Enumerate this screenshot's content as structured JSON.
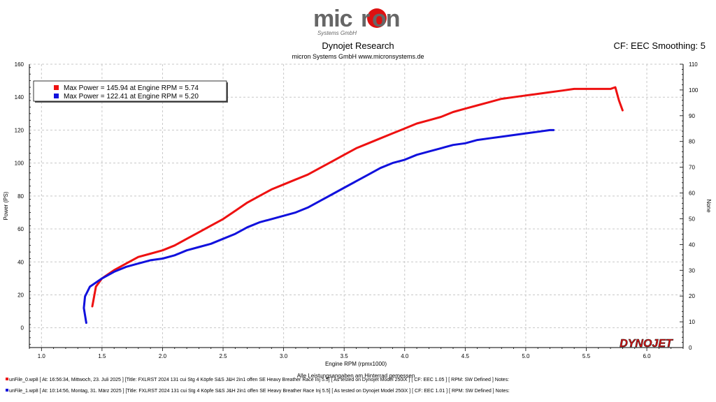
{
  "logo": {
    "brand": "micron",
    "tagline": "Systems GmbH"
  },
  "header": {
    "title": "Dynojet Research",
    "subtitle": "micron Systems GmbH  www.micronsystems.de",
    "cf_label": "CF: EEC Smoothing: 5"
  },
  "footer": {
    "run0": "unFile_0.wp8 [ At:  16:56:34, Mittwoch, 23. Juli  2025 ] [Title:  FXLRST  2024  131  cui  Stg  4  Köpfe  S&S  J&H  2in1  offen  SE  Heavy  Breather  Race  Inj  5.5]  [ As tested on Dynojet  Model 250iX ] [ CF: EEC 1.05 ] [ RPM: SW  Defined ] Notes:",
    "run1": "unFile_1.wp8 [ At:  10:14:56, Montag, 31. März  2025 ] [Title:  FXLRST  2024  131  cui  Stg  4  Köpfe  S&S  J&H  2in1  offen  SE  Heavy  Breather  Race  Inj  5.5]  [ As tested on Dynojet  Model 250iX ] [ CF: EEC 1.01 ] [ RPM: SW  Defined ] Notes:"
  },
  "chart_data": {
    "type": "line",
    "xlabel": "Engine RPM (rpmx1000)",
    "xlabel2": "Alle Leistungsangaben am Hinterrad gemessen",
    "ylabel": "Power (PS)",
    "y2label": "None",
    "xlim": [
      0.9,
      6.3
    ],
    "ylim": [
      -12,
      160
    ],
    "y2lim": [
      0,
      110
    ],
    "xticks": [
      "1.0",
      "1.5",
      "2.0",
      "2.5",
      "3.0",
      "3.5",
      "4.0",
      "4.5",
      "5.0",
      "5.5",
      "6.0"
    ],
    "yticks": [
      "0",
      "20",
      "40",
      "60",
      "80",
      "100",
      "120",
      "140",
      "160"
    ],
    "y2ticks": [
      "0",
      "10",
      "20",
      "30",
      "40",
      "50",
      "60",
      "70",
      "80",
      "90",
      "100",
      "110"
    ],
    "grid": true,
    "legend_position": "top-left",
    "watermark": "DYNOJET",
    "series": [
      {
        "name": "Max Power = 145.94 at Engine RPM = 5.74",
        "color": "#ee1111",
        "x": [
          1.42,
          1.45,
          1.5,
          1.6,
          1.7,
          1.8,
          1.9,
          2.0,
          2.1,
          2.2,
          2.3,
          2.4,
          2.5,
          2.6,
          2.7,
          2.8,
          2.9,
          3.0,
          3.1,
          3.2,
          3.3,
          3.4,
          3.5,
          3.6,
          3.7,
          3.8,
          3.9,
          4.0,
          4.1,
          4.2,
          4.3,
          4.4,
          4.5,
          4.6,
          4.7,
          4.8,
          4.9,
          5.0,
          5.1,
          5.2,
          5.3,
          5.4,
          5.5,
          5.6,
          5.7,
          5.74,
          5.77,
          5.8
        ],
        "y": [
          13,
          25,
          30,
          35,
          39,
          43,
          45,
          47,
          50,
          54,
          58,
          62,
          66,
          71,
          76,
          80,
          84,
          87,
          90,
          93,
          97,
          101,
          105,
          109,
          112,
          115,
          118,
          121,
          124,
          126,
          128,
          131,
          133,
          135,
          137,
          139,
          140,
          141,
          142,
          143,
          144,
          145,
          145,
          145,
          145,
          146,
          138,
          132
        ]
      },
      {
        "name": "Max Power = 122.41 at Engine RPM = 5.20",
        "color": "#1111dd",
        "x": [
          1.37,
          1.35,
          1.36,
          1.4,
          1.5,
          1.6,
          1.7,
          1.8,
          1.9,
          2.0,
          2.1,
          2.2,
          2.3,
          2.4,
          2.5,
          2.6,
          2.7,
          2.8,
          2.9,
          3.0,
          3.1,
          3.2,
          3.3,
          3.4,
          3.5,
          3.6,
          3.7,
          3.8,
          3.9,
          4.0,
          4.1,
          4.2,
          4.3,
          4.4,
          4.5,
          4.6,
          4.7,
          4.8,
          4.9,
          5.0,
          5.1,
          5.2,
          5.23
        ],
        "y": [
          3,
          12,
          19,
          25,
          30,
          34,
          37,
          39,
          41,
          42,
          44,
          47,
          49,
          51,
          54,
          57,
          61,
          64,
          66,
          68,
          70,
          73,
          77,
          81,
          85,
          89,
          93,
          97,
          100,
          102,
          105,
          107,
          109,
          111,
          112,
          114,
          115,
          116,
          117,
          118,
          119,
          120,
          120
        ]
      }
    ]
  }
}
